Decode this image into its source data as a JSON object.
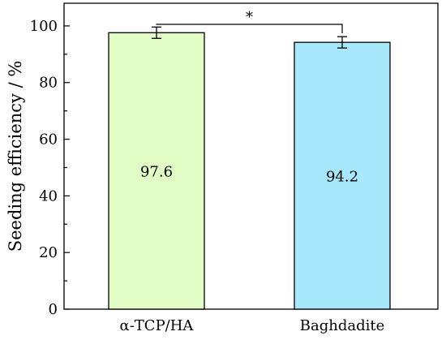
{
  "chart_data": {
    "type": "bar",
    "categories": [
      "α-TCP/HA",
      "Baghdadite"
    ],
    "values": [
      97.6,
      94.2
    ],
    "errors": [
      2.0,
      2.0
    ],
    "data_labels": [
      "97.6",
      "94.2"
    ],
    "bar_colors": [
      "#e1fcc4",
      "#a7e8fc"
    ],
    "ylabel": "Seeding efficiency / %",
    "xlabel": "",
    "ylim": [
      0,
      108
    ],
    "yticks": [
      0,
      20,
      40,
      60,
      80,
      100
    ],
    "grid": false,
    "significance": {
      "between": [
        0,
        1
      ],
      "label": "*"
    }
  }
}
